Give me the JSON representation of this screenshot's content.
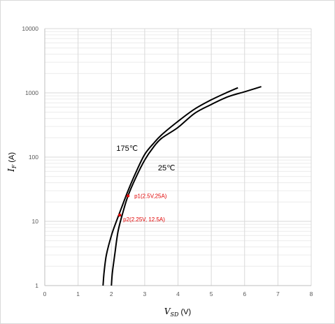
{
  "chart_data": {
    "type": "line",
    "title": "",
    "xlabel": {
      "main": "V",
      "sub": "SD",
      "unit": " (V)"
    },
    "ylabel": {
      "main": "I",
      "sub": "F",
      "unit": " (A)"
    },
    "xlim": [
      0,
      8
    ],
    "ylim": [
      1,
      10000
    ],
    "yscale": "log",
    "x_ticks": [
      "0",
      "1",
      "2",
      "3",
      "4",
      "5",
      "6",
      "7",
      "8"
    ],
    "y_ticks": [
      "1",
      "10",
      "100",
      "1000",
      "10000"
    ],
    "grid": true,
    "series": [
      {
        "name": "175℃",
        "color": "#000000",
        "x": [
          1.75,
          1.78,
          1.85,
          2.0,
          2.15,
          2.3,
          2.5,
          2.75,
          3.0,
          3.25,
          3.5,
          4.0,
          4.5,
          5.0,
          5.5,
          5.8
        ],
        "y": [
          1,
          1.6,
          3,
          6,
          10,
          16,
          30,
          60,
          110,
          160,
          220,
          360,
          560,
          780,
          1030,
          1200
        ]
      },
      {
        "name": "25℃",
        "color": "#000000",
        "x": [
          2.0,
          2.03,
          2.1,
          2.2,
          2.35,
          2.5,
          2.75,
          3.0,
          3.25,
          3.5,
          4.0,
          4.5,
          5.0,
          5.5,
          6.0,
          6.5
        ],
        "y": [
          1,
          1.6,
          3,
          7,
          14,
          25,
          50,
          90,
          140,
          195,
          290,
          480,
          660,
          870,
          1040,
          1250
        ]
      }
    ],
    "annotations": [
      {
        "label": "p1(2.5V,25A)",
        "x": 2.5,
        "y": 25,
        "color": "#e00000"
      },
      {
        "label": "p2(2.25V, 12.5A)",
        "x": 2.25,
        "y": 12.5,
        "color": "#e00000"
      }
    ]
  }
}
